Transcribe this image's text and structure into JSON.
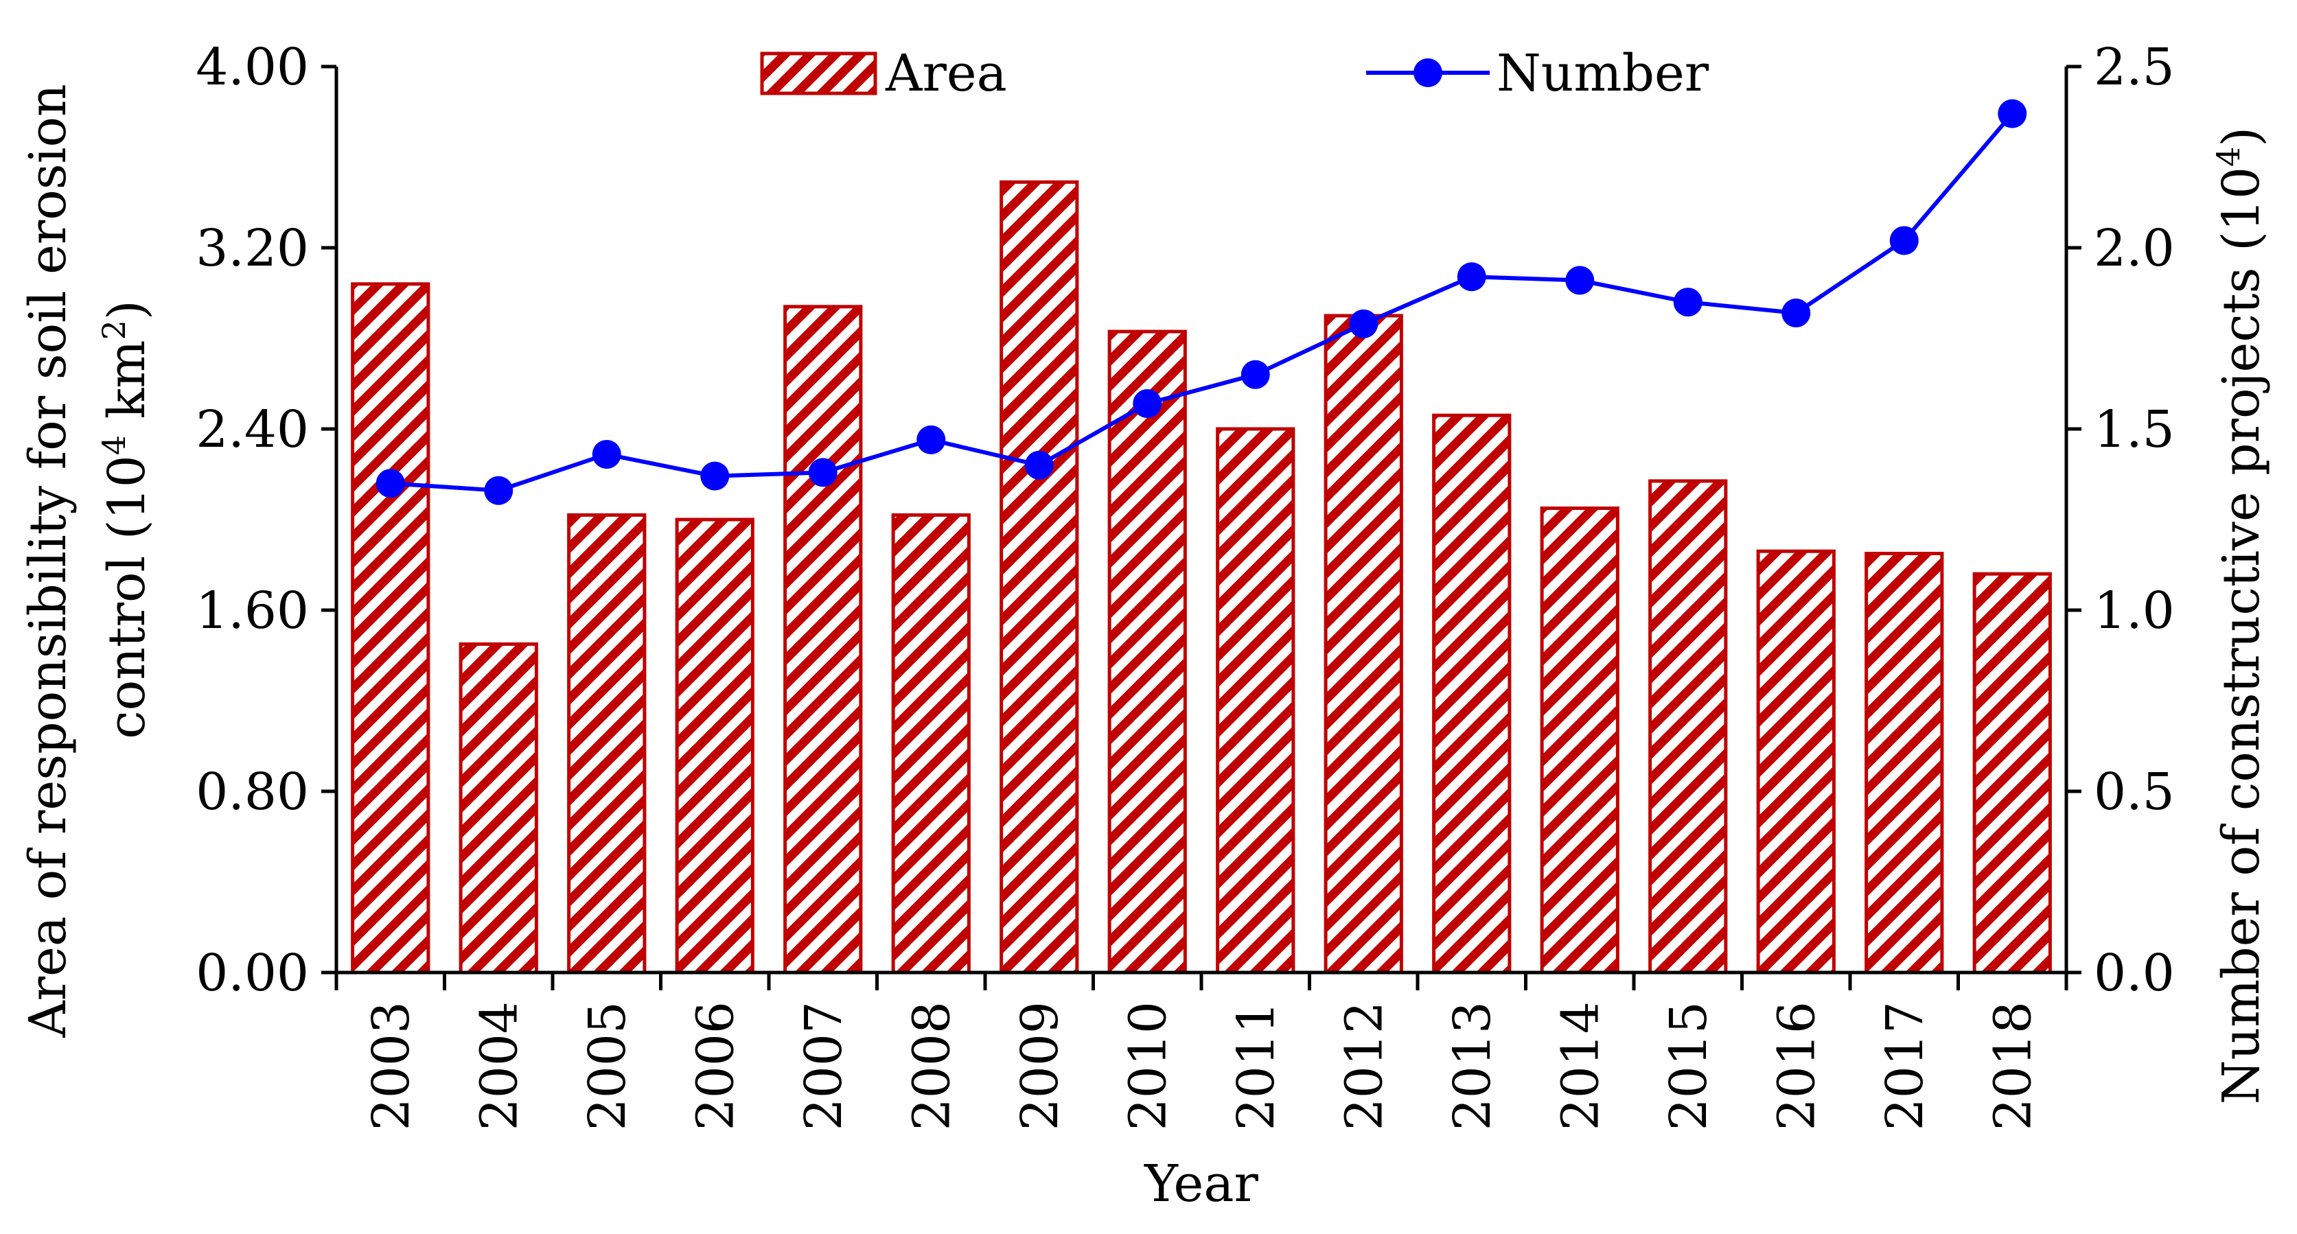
{
  "chart_data": {
    "type": "bar+line",
    "categories": [
      "2003",
      "2004",
      "2005",
      "2006",
      "2007",
      "2008",
      "2009",
      "2010",
      "2011",
      "2012",
      "2013",
      "2014",
      "2015",
      "2016",
      "2017",
      "2018"
    ],
    "series": [
      {
        "name": "Area",
        "type": "bar",
        "axis": "left",
        "values": [
          3.04,
          1.45,
          2.02,
          2.0,
          2.94,
          2.02,
          3.49,
          2.83,
          2.4,
          2.9,
          2.46,
          2.05,
          2.17,
          1.86,
          1.85,
          1.76
        ]
      },
      {
        "name": "Number",
        "type": "line",
        "axis": "right",
        "values": [
          1.35,
          1.33,
          1.43,
          1.37,
          1.38,
          1.47,
          1.4,
          1.57,
          1.65,
          1.79,
          1.92,
          1.91,
          1.85,
          1.82,
          2.02,
          2.37
        ]
      }
    ],
    "y_left": {
      "label_parts": [
        "Area of responsibility for soil erosion",
        "control (10",
        "4",
        " km",
        "2",
        ")"
      ],
      "ylim": [
        0,
        4
      ],
      "ticks": [
        "0.00",
        "0.80",
        "1.60",
        "2.40",
        "3.20",
        "4.00"
      ]
    },
    "y_right": {
      "label_parts": [
        "Number of constructive projects (10",
        "4",
        ")"
      ],
      "ylim": [
        0,
        2.5
      ],
      "ticks": [
        "0.0",
        "0.5",
        "1.0",
        "1.5",
        "2.0",
        "2.5"
      ]
    },
    "xlabel": "Year",
    "legend_position": "top",
    "grid": false,
    "colors": {
      "bar": "#c00000",
      "line": "#0000ff",
      "axis": "#000000"
    }
  }
}
